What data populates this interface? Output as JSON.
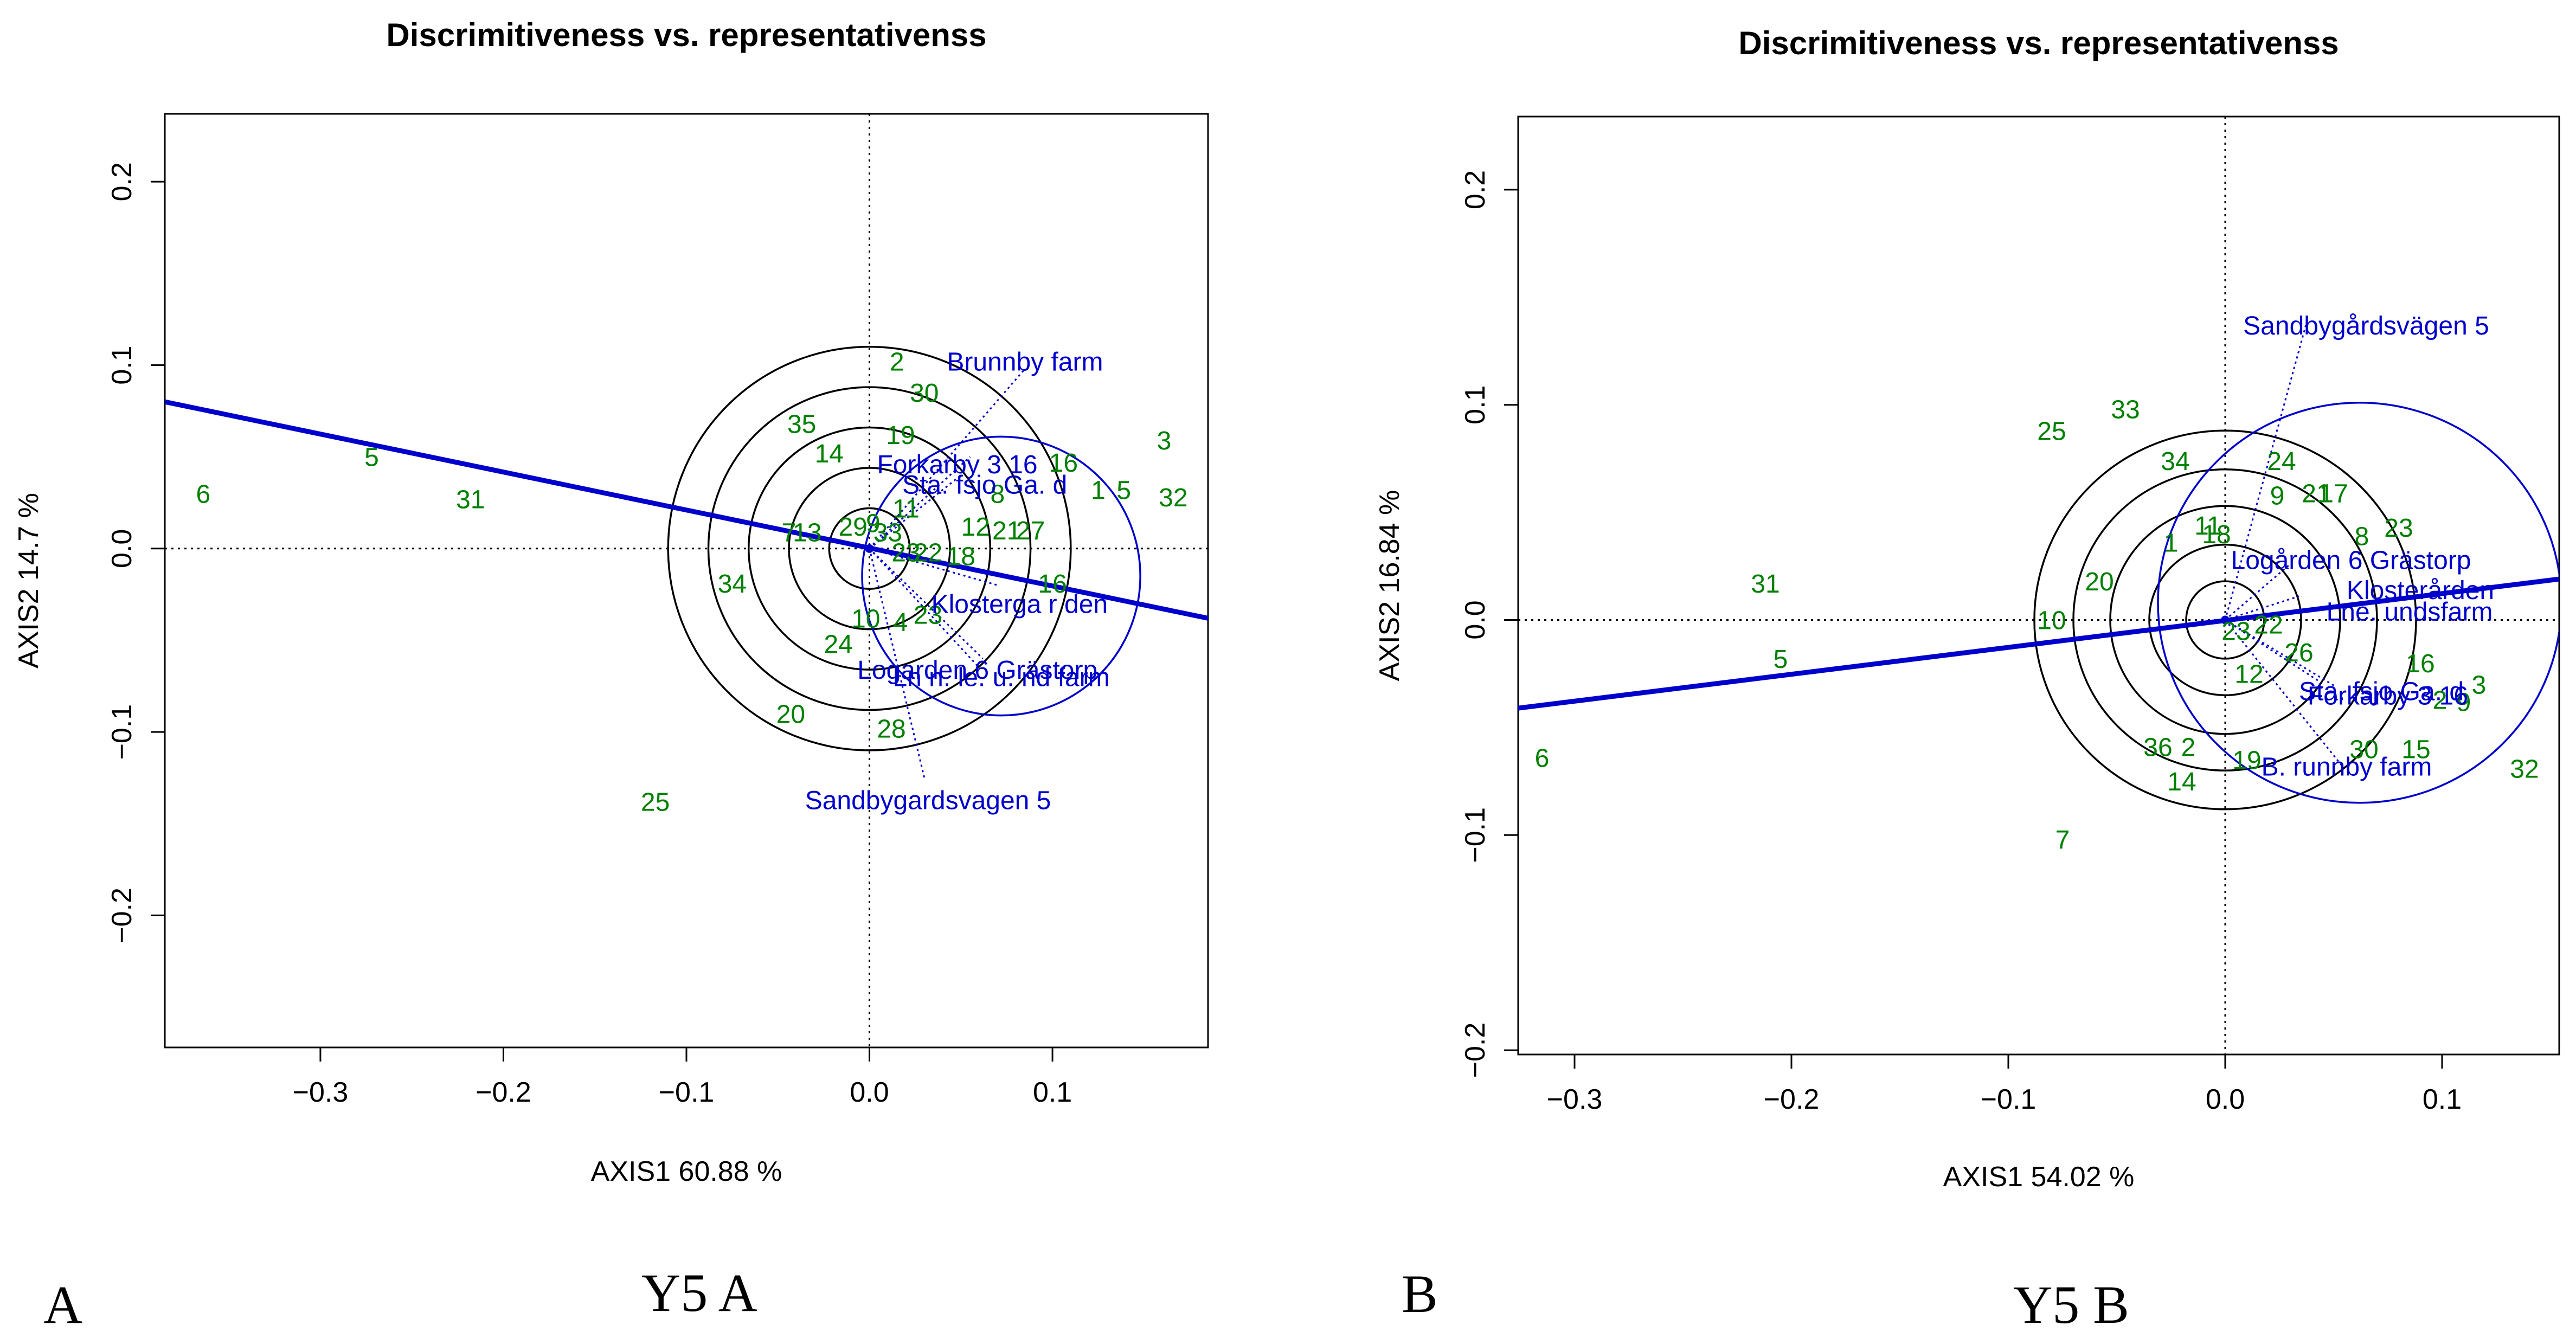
{
  "panels": [
    {
      "panel_label": "A",
      "caption": "Y5 A",
      "chart_data": {
        "type": "scatter",
        "title": "Discrimitiveness vs. representativenss",
        "xlabel": "AXIS1 60.88 %",
        "ylabel": "AXIS2 14.7 %",
        "xlim": [
          -0.385,
          0.185
        ],
        "ylim": [
          -0.272,
          0.237
        ],
        "xticks": [
          -0.3,
          -0.2,
          -0.1,
          0.0,
          0.1
        ],
        "yticks": [
          -0.2,
          -0.1,
          0.0,
          0.1,
          0.2
        ],
        "tick_labels_x": [
          "−0.3",
          "−0.2",
          "−0.1",
          "0.0",
          "0.1"
        ],
        "tick_labels_y": [
          "−0.2",
          "−0.1",
          "0.0",
          "0.1",
          "0.2"
        ],
        "circle_radii": [
          0.022,
          0.044,
          0.066,
          0.088,
          0.11
        ],
        "aec_line": [
          [
            -0.385,
            0.08
          ],
          [
            0.185,
            -0.038
          ]
        ],
        "avg_env": [
          0.072,
          -0.015
        ],
        "blue_circle": {
          "center": [
            0.072,
            -0.015
          ],
          "radius": 0.076
        },
        "genotypes": [
          {
            "label": "2",
            "x": 0.015,
            "y": 0.102
          },
          {
            "label": "30",
            "x": 0.03,
            "y": 0.085
          },
          {
            "label": "35",
            "x": -0.037,
            "y": 0.068
          },
          {
            "label": "19",
            "x": 0.017,
            "y": 0.062
          },
          {
            "label": "14",
            "x": -0.022,
            "y": 0.052
          },
          {
            "label": "3",
            "x": 0.161,
            "y": 0.059
          },
          {
            "label": "16",
            "x": 0.106,
            "y": 0.047
          },
          {
            "label": "1",
            "x": 0.125,
            "y": 0.032
          },
          {
            "label": "5",
            "x": 0.139,
            "y": 0.032
          },
          {
            "label": "32",
            "x": 0.166,
            "y": 0.028
          },
          {
            "label": "6",
            "x": -0.364,
            "y": 0.03
          },
          {
            "label": "5",
            "x": -0.272,
            "y": 0.05
          },
          {
            "label": "31",
            "x": -0.218,
            "y": 0.027
          },
          {
            "label": "8",
            "x": 0.07,
            "y": 0.03
          },
          {
            "label": "11",
            "x": 0.02,
            "y": 0.022
          },
          {
            "label": "12",
            "x": 0.058,
            "y": 0.012
          },
          {
            "label": "21",
            "x": 0.075,
            "y": 0.01
          },
          {
            "label": "27",
            "x": 0.088,
            "y": 0.01
          },
          {
            "label": "7",
            "x": -0.044,
            "y": 0.009
          },
          {
            "label": "13",
            "x": -0.034,
            "y": 0.009
          },
          {
            "label": "29",
            "x": -0.009,
            "y": 0.012
          },
          {
            "label": "9",
            "x": 0.002,
            "y": 0.014
          },
          {
            "label": "33",
            "x": 0.01,
            "y": 0.009
          },
          {
            "label": "23",
            "x": 0.02,
            "y": -0.002
          },
          {
            "label": "22",
            "x": 0.032,
            "y": -0.002
          },
          {
            "label": "18",
            "x": 0.05,
            "y": -0.004
          },
          {
            "label": "34",
            "x": -0.075,
            "y": -0.019
          },
          {
            "label": "16",
            "x": 0.1,
            "y": -0.019
          },
          {
            "label": "10",
            "x": -0.002,
            "y": -0.038
          },
          {
            "label": "4",
            "x": 0.017,
            "y": -0.04
          },
          {
            "label": "23",
            "x": 0.032,
            "y": -0.036
          },
          {
            "label": "24",
            "x": -0.017,
            "y": -0.052
          },
          {
            "label": "20",
            "x": -0.043,
            "y": -0.09
          },
          {
            "label": "28",
            "x": 0.012,
            "y": -0.098
          },
          {
            "label": "25",
            "x": -0.117,
            "y": -0.138
          }
        ],
        "environments": [
          {
            "label": "Brunnby farm",
            "x": 0.085,
            "y": 0.102,
            "vx": 0.085,
            "vy": 0.098
          },
          {
            "label": "Forkarby 3 16",
            "x": 0.048,
            "y": 0.046,
            "vx": 0.055,
            "vy": 0.05
          },
          {
            "label": "Sta. fsjo Ga. d",
            "x": 0.063,
            "y": 0.035,
            "vx": 0.05,
            "vy": 0.04
          },
          {
            "label": "Klosterga r den",
            "x": 0.082,
            "y": -0.03,
            "vx": 0.07,
            "vy": -0.02
          },
          {
            "label": "Logarden 6 Grästorp",
            "x": 0.059,
            "y": -0.066,
            "vx": 0.062,
            "vy": -0.06
          },
          {
            "label": "Ln n. le. u. nd farm",
            "x": 0.072,
            "y": -0.07,
            "vx": 0.06,
            "vy": -0.065
          },
          {
            "label": "Sandbygardsvagen 5",
            "x": 0.032,
            "y": -0.137,
            "vx": 0.03,
            "vy": -0.125
          }
        ]
      }
    },
    {
      "panel_label": "B",
      "caption": "Y5 B",
      "chart_data": {
        "type": "scatter",
        "title": "Discrimitiveness vs. representativenss",
        "xlabel": "AXIS1 54.02 %",
        "ylabel": "AXIS2 16.84 %",
        "xlim": [
          -0.326,
          0.154
        ],
        "ylim": [
          -0.202,
          0.234
        ],
        "xticks": [
          -0.3,
          -0.2,
          -0.1,
          0.0,
          0.1
        ],
        "yticks": [
          -0.2,
          -0.1,
          0.0,
          0.1,
          0.2
        ],
        "tick_labels_x": [
          "−0.3",
          "−0.2",
          "−0.1",
          "0.0",
          "0.1"
        ],
        "tick_labels_y": [
          "−0.2",
          "−0.1",
          "0.0",
          "0.1",
          "0.2"
        ],
        "circle_radii": [
          0.018,
          0.035,
          0.053,
          0.07,
          0.088
        ],
        "aec_line": [
          [
            -0.326,
            -0.041
          ],
          [
            0.154,
            0.019
          ]
        ],
        "avg_env": [
          0.062,
          0.008
        ],
        "blue_circle": {
          "center": [
            0.062,
            0.008
          ],
          "radius": 0.093
        },
        "genotypes": [
          {
            "label": "25",
            "x": -0.08,
            "y": 0.088
          },
          {
            "label": "33",
            "x": -0.046,
            "y": 0.098
          },
          {
            "label": "34",
            "x": -0.023,
            "y": 0.074
          },
          {
            "label": "24",
            "x": 0.026,
            "y": 0.074
          },
          {
            "label": "9",
            "x": 0.024,
            "y": 0.058
          },
          {
            "label": "21",
            "x": 0.042,
            "y": 0.059
          },
          {
            "label": "17",
            "x": 0.05,
            "y": 0.059
          },
          {
            "label": "23",
            "x": 0.08,
            "y": 0.043
          },
          {
            "label": "8",
            "x": 0.063,
            "y": 0.039
          },
          {
            "label": "1",
            "x": -0.025,
            "y": 0.036
          },
          {
            "label": "11",
            "x": -0.008,
            "y": 0.044
          },
          {
            "label": "18",
            "x": -0.004,
            "y": 0.04
          },
          {
            "label": "20",
            "x": -0.058,
            "y": 0.018
          },
          {
            "label": "31",
            "x": -0.212,
            "y": 0.017
          },
          {
            "label": "10",
            "x": -0.08,
            "y": 0.0
          },
          {
            "label": "5",
            "x": -0.205,
            "y": -0.018
          },
          {
            "label": "6",
            "x": -0.315,
            "y": -0.064
          },
          {
            "label": "22",
            "x": 0.02,
            "y": -0.002
          },
          {
            "label": "23",
            "x": 0.005,
            "y": -0.005
          },
          {
            "label": "26",
            "x": 0.034,
            "y": -0.015
          },
          {
            "label": "16",
            "x": 0.09,
            "y": -0.02
          },
          {
            "label": "3",
            "x": 0.117,
            "y": -0.03
          },
          {
            "label": "2",
            "x": 0.099,
            "y": -0.037
          },
          {
            "label": "9",
            "x": 0.11,
            "y": -0.038
          },
          {
            "label": "12",
            "x": 0.011,
            "y": -0.025
          },
          {
            "label": "36",
            "x": -0.031,
            "y": -0.059
          },
          {
            "label": "2",
            "x": -0.017,
            "y": -0.059
          },
          {
            "label": "19",
            "x": 0.01,
            "y": -0.065
          },
          {
            "label": "30",
            "x": 0.064,
            "y": -0.06
          },
          {
            "label": "15",
            "x": 0.088,
            "y": -0.06
          },
          {
            "label": "14",
            "x": -0.02,
            "y": -0.075
          },
          {
            "label": "32",
            "x": 0.138,
            "y": -0.069
          },
          {
            "label": "7",
            "x": -0.075,
            "y": -0.102
          }
        ],
        "environments": [
          {
            "label": "Sandbygårdsvägen 5",
            "x": 0.065,
            "y": 0.137,
            "vx": 0.038,
            "vy": 0.14
          },
          {
            "label": "Logården 6 Grästorp",
            "x": 0.058,
            "y": 0.028,
            "vx": 0.03,
            "vy": 0.026
          },
          {
            "label": "Klosterården",
            "x": 0.09,
            "y": 0.014,
            "vx": 0.034,
            "vy": 0.011
          },
          {
            "label": "Lne. undsfarm",
            "x": 0.085,
            "y": 0.004,
            "vx": 0.04,
            "vy": 0.004
          },
          {
            "label": "Sta. fsjo Ga. d",
            "x": 0.072,
            "y": -0.033,
            "vx": 0.044,
            "vy": -0.029
          },
          {
            "label": "Forkarby 3 16",
            "x": 0.075,
            "y": -0.035,
            "vx": 0.051,
            "vy": -0.031
          },
          {
            "label": "B. runnby farm",
            "x": 0.056,
            "y": -0.068,
            "vx": 0.054,
            "vy": -0.068
          }
        ]
      }
    }
  ]
}
